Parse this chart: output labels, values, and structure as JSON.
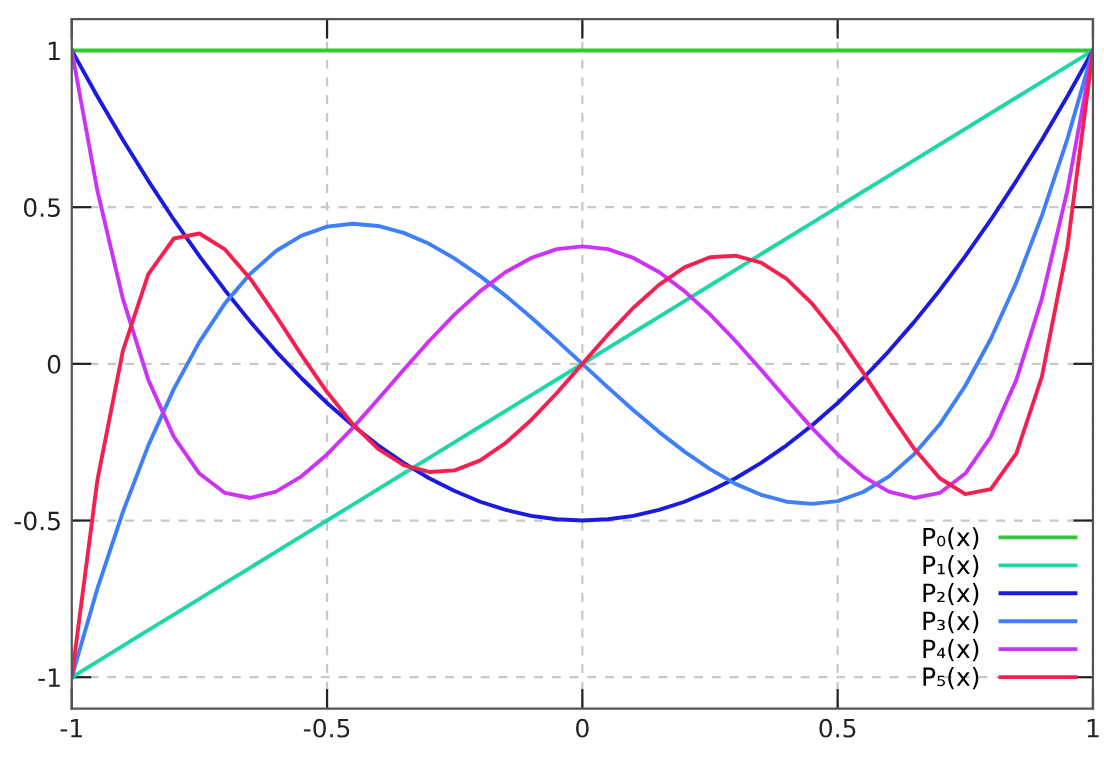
{
  "chart_data": {
    "type": "line",
    "x": [
      -1,
      -0.95,
      -0.9,
      -0.85,
      -0.8,
      -0.75,
      -0.7,
      -0.65,
      -0.6,
      -0.55,
      -0.5,
      -0.45,
      -0.4,
      -0.35,
      -0.3,
      -0.25,
      -0.2,
      -0.15,
      -0.1,
      -0.05,
      0,
      0.05,
      0.1,
      0.15,
      0.2,
      0.25,
      0.3,
      0.35,
      0.4,
      0.45,
      0.5,
      0.55,
      0.6,
      0.65,
      0.7,
      0.75,
      0.8,
      0.85,
      0.9,
      0.95,
      1
    ],
    "series": [
      {
        "name": "P₀(x)",
        "color": "#33c733",
        "values": [
          1,
          1,
          1,
          1,
          1,
          1,
          1,
          1,
          1,
          1,
          1,
          1,
          1,
          1,
          1,
          1,
          1,
          1,
          1,
          1,
          1,
          1,
          1,
          1,
          1,
          1,
          1,
          1,
          1,
          1,
          1,
          1,
          1,
          1,
          1,
          1,
          1,
          1,
          1,
          1,
          1
        ]
      },
      {
        "name": "P₁(x)",
        "color": "#1fd6a6",
        "values": [
          -1,
          -0.95,
          -0.9,
          -0.85,
          -0.8,
          -0.75,
          -0.7,
          -0.65,
          -0.6,
          -0.55,
          -0.5,
          -0.45,
          -0.4,
          -0.35,
          -0.3,
          -0.25,
          -0.2,
          -0.15,
          -0.1,
          -0.05,
          0,
          0.05,
          0.1,
          0.15,
          0.2,
          0.25,
          0.3,
          0.35,
          0.4,
          0.45,
          0.5,
          0.55,
          0.6,
          0.65,
          0.7,
          0.75,
          0.8,
          0.85,
          0.9,
          0.95,
          1
        ]
      },
      {
        "name": "P₂(x)",
        "color": "#1a1ae0",
        "values": [
          1,
          0.854,
          0.715,
          0.584,
          0.46,
          0.344,
          0.235,
          0.134,
          0.04,
          -0.046,
          -0.125,
          -0.196,
          -0.26,
          -0.316,
          -0.365,
          -0.406,
          -0.44,
          -0.466,
          -0.485,
          -0.496,
          -0.5,
          -0.496,
          -0.485,
          -0.466,
          -0.44,
          -0.406,
          -0.365,
          -0.316,
          -0.26,
          -0.196,
          -0.125,
          -0.046,
          0.04,
          0.134,
          0.235,
          0.344,
          0.46,
          0.584,
          0.715,
          0.854,
          1
        ]
      },
      {
        "name": "P₃(x)",
        "color": "#3f7ffa",
        "values": [
          -1,
          -0.718,
          -0.473,
          -0.26,
          -0.08,
          0.07,
          0.193,
          0.288,
          0.36,
          0.409,
          0.438,
          0.447,
          0.44,
          0.418,
          0.383,
          0.336,
          0.28,
          0.217,
          0.148,
          0.075,
          0,
          -0.075,
          -0.148,
          -0.217,
          -0.28,
          -0.336,
          -0.383,
          -0.418,
          -0.44,
          -0.447,
          -0.438,
          -0.409,
          -0.36,
          -0.288,
          -0.193,
          -0.07,
          0.08,
          0.26,
          0.473,
          0.718,
          1
        ]
      },
      {
        "name": "P₄(x)",
        "color": "#cc33f5",
        "values": [
          1,
          0.554,
          0.208,
          -0.051,
          -0.233,
          -0.35,
          -0.412,
          -0.428,
          -0.408,
          -0.359,
          -0.289,
          -0.205,
          -0.113,
          -0.019,
          0.073,
          0.158,
          0.232,
          0.293,
          0.338,
          0.366,
          0.375,
          0.366,
          0.338,
          0.293,
          0.232,
          0.158,
          0.073,
          -0.019,
          -0.113,
          -0.205,
          -0.289,
          -0.359,
          -0.408,
          -0.428,
          -0.412,
          -0.35,
          -0.233,
          -0.051,
          0.208,
          0.554,
          1
        ]
      },
      {
        "name": "P₅(x)",
        "color": "#f5204f",
        "values": [
          -1,
          -0.373,
          0.041,
          0.286,
          0.4,
          0.416,
          0.365,
          0.271,
          0.153,
          0.028,
          -0.09,
          -0.192,
          -0.271,
          -0.323,
          -0.345,
          -0.34,
          -0.308,
          -0.252,
          -0.179,
          -0.093,
          0,
          0.093,
          0.179,
          0.252,
          0.308,
          0.34,
          0.345,
          0.323,
          0.271,
          0.192,
          0.09,
          -0.028,
          -0.153,
          -0.271,
          -0.365,
          -0.416,
          -0.4,
          -0.286,
          -0.041,
          0.373,
          1
        ]
      }
    ],
    "xlim": [
      -1,
      1
    ],
    "ylim": [
      -1.1,
      1.1
    ],
    "xticks": [
      -1,
      -0.5,
      0,
      0.5,
      1
    ],
    "yticks": [
      -1,
      -0.5,
      0,
      0.5,
      1
    ],
    "grid": true,
    "legend": "bottom right",
    "line_style": "solid"
  }
}
